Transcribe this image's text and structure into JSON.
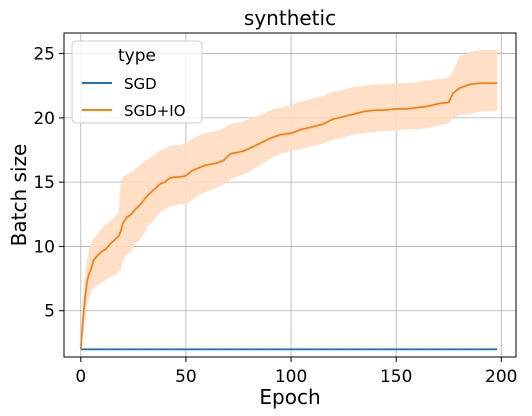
{
  "chart_data": {
    "type": "line",
    "title": "synthetic",
    "xlabel": "Epoch",
    "ylabel": "Batch size",
    "xlim": [
      -8,
      207
    ],
    "ylim": [
      1.4,
      26.6
    ],
    "xticks": [
      0,
      50,
      100,
      150,
      200
    ],
    "yticks": [
      5,
      10,
      15,
      20,
      25
    ],
    "grid": true,
    "legend": {
      "title": "type",
      "position": "top-left"
    },
    "series": [
      {
        "name": "SGD",
        "color": "#1f77b4",
        "x": [
          0,
          198
        ],
        "y": [
          2.0,
          2.0
        ]
      },
      {
        "name": "SGD+IO",
        "color": "#ff7f0e",
        "band_color": "#ffdcc0",
        "x": [
          0,
          1,
          2,
          3,
          4,
          5,
          6,
          8,
          10,
          12,
          14,
          16,
          18,
          19,
          20,
          22,
          24,
          26,
          28,
          30,
          32,
          34,
          36,
          38,
          40,
          42,
          45,
          47,
          50,
          53,
          56,
          59,
          62,
          65,
          68,
          71,
          74,
          77,
          80,
          85,
          90,
          95,
          100,
          105,
          110,
          115,
          120,
          125,
          130,
          135,
          140,
          145,
          150,
          155,
          160,
          165,
          170,
          175,
          177,
          180,
          185,
          190,
          195,
          198
        ],
        "y": [
          2.0,
          4.2,
          6.0,
          7.3,
          7.9,
          8.3,
          8.9,
          9.3,
          9.6,
          9.8,
          10.2,
          10.5,
          10.8,
          11.2,
          11.8,
          12.3,
          12.5,
          12.9,
          13.2,
          13.6,
          14.0,
          14.3,
          14.6,
          14.9,
          15.0,
          15.3,
          15.4,
          15.4,
          15.5,
          15.9,
          16.1,
          16.3,
          16.4,
          16.5,
          16.7,
          17.2,
          17.3,
          17.4,
          17.6,
          18.0,
          18.4,
          18.7,
          18.8,
          19.1,
          19.3,
          19.5,
          19.9,
          20.1,
          20.3,
          20.5,
          20.6,
          20.6,
          20.7,
          20.7,
          20.8,
          20.9,
          21.1,
          21.2,
          21.9,
          22.3,
          22.6,
          22.7,
          22.7,
          22.7
        ],
        "band_low": [
          2.0,
          3.2,
          4.5,
          5.5,
          6.0,
          6.5,
          6.8,
          7.0,
          7.2,
          7.4,
          7.6,
          7.8,
          8.0,
          8.2,
          8.9,
          9.4,
          9.6,
          10.2,
          10.5,
          11.0,
          11.6,
          11.9,
          12.3,
          12.7,
          12.9,
          13.1,
          13.2,
          13.3,
          13.3,
          13.6,
          14.0,
          14.2,
          14.4,
          14.6,
          14.8,
          15.2,
          15.4,
          15.6,
          15.8,
          16.3,
          16.8,
          17.2,
          17.4,
          17.6,
          17.8,
          18.0,
          18.3,
          18.5,
          18.7,
          18.8,
          18.9,
          19.0,
          19.0,
          19.1,
          19.1,
          19.2,
          19.4,
          19.6,
          20.0,
          20.2,
          20.3,
          20.5,
          20.5,
          20.6
        ],
        "band_high": [
          2.0,
          5.2,
          7.5,
          9.0,
          9.8,
          10.2,
          10.6,
          11.0,
          11.4,
          11.7,
          12.0,
          12.3,
          12.6,
          15.1,
          15.4,
          15.6,
          15.8,
          16.0,
          16.3,
          16.6,
          16.8,
          17.0,
          17.3,
          17.5,
          17.6,
          17.8,
          17.9,
          17.9,
          18.0,
          18.4,
          18.6,
          18.8,
          18.9,
          19.0,
          19.2,
          19.5,
          19.6,
          19.7,
          19.9,
          20.2,
          20.6,
          20.8,
          21.0,
          21.3,
          21.5,
          21.7,
          22.0,
          22.2,
          22.4,
          22.5,
          22.6,
          22.6,
          22.7,
          22.7,
          22.8,
          22.9,
          23.0,
          23.1,
          23.6,
          24.8,
          25.1,
          25.3,
          25.3,
          25.3
        ]
      }
    ]
  }
}
